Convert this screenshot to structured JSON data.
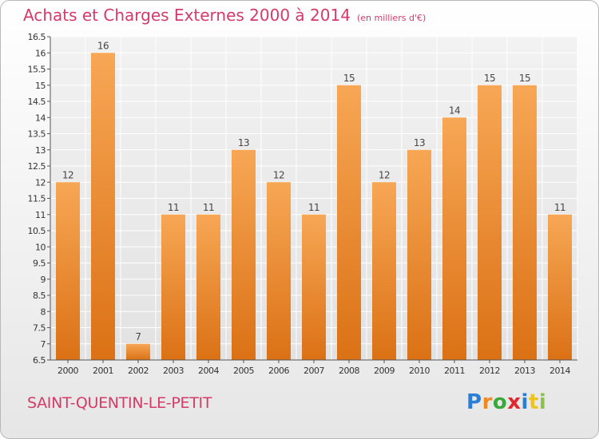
{
  "title": "Achats et Charges Externes 2000 à 2014",
  "subtitle": "(en milliers d'€)",
  "commune": "SAINT-QUENTIN-LE-PETIT",
  "logo": "Proxiti",
  "colors": {
    "bar_top": "#f7a755",
    "bar_bottom": "#db7115",
    "title": "#d43a6a"
  },
  "chart_data": {
    "type": "bar",
    "title": "Achats et Charges Externes 2000 à 2014",
    "subtitle": "(en milliers d'€)",
    "categories": [
      "2000",
      "2001",
      "2002",
      "2003",
      "2004",
      "2005",
      "2006",
      "2007",
      "2008",
      "2009",
      "2010",
      "2011",
      "2012",
      "2013",
      "2014"
    ],
    "values": [
      12,
      16,
      7,
      11,
      11,
      13,
      12,
      11,
      15,
      12,
      13,
      14,
      15,
      15,
      11
    ],
    "ylim": [
      6.5,
      16.5
    ],
    "yticks": [
      "6.5",
      "7",
      "7.5",
      "8",
      "8.5",
      "9",
      "9.5",
      "10",
      "10.5",
      "11",
      "11.5",
      "12",
      "12.5",
      "13",
      "13.5",
      "14",
      "14.5",
      "15",
      "15.5",
      "16",
      "16.5"
    ],
    "grid": true,
    "xlabel": "",
    "ylabel": ""
  }
}
